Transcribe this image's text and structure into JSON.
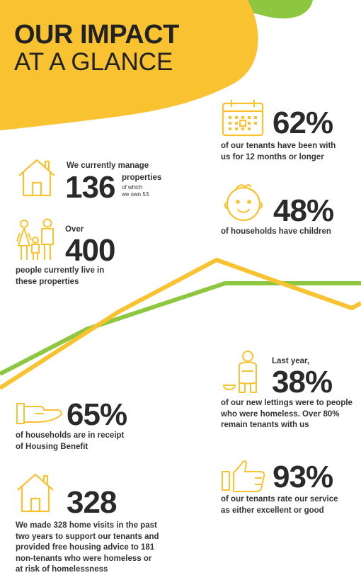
{
  "title": {
    "line1": "OUR IMPACT",
    "line2": "AT A GLANCE"
  },
  "colors": {
    "yellow": "#F9C231",
    "green": "#8DC63F",
    "text": "#2a2a2a"
  },
  "stats": {
    "properties": {
      "intro": "We currently manage",
      "number": "136",
      "unit": "properties",
      "note_line1": "of which",
      "note_line2": "we own 53",
      "icon": "house-icon"
    },
    "tenancy": {
      "number": "62%",
      "line1": "of our tenants have been with",
      "line2": "us for 12 months or longer",
      "icon": "calendar-icon"
    },
    "people": {
      "intro": "Over",
      "number": "400",
      "line1": "people currently live in",
      "line2": "these properties",
      "icon": "family-icon"
    },
    "children": {
      "number": "48%",
      "line1": "of households have children",
      "icon": "baby-face-icon"
    },
    "homeless_lettings": {
      "intro": "Last year,",
      "number": "38%",
      "line1": "of our new lettings were to people",
      "line2": "who were homeless. Over 80%",
      "line3": "remain tenants with us",
      "icon": "person-sitting-icon"
    },
    "housing_benefit": {
      "number": "65%",
      "line1": "of households are in receipt",
      "line2": "of Housing Benefit",
      "icon": "hand-icon"
    },
    "home_visits": {
      "number": "328",
      "line1": "We made 328 home visits in the past",
      "line2": "two years to support our tenants and",
      "line3": "provided free housing advice to 181",
      "line4": "non-tenants who were homeless or",
      "line5": "at risk of homelessness",
      "icon": "house-icon"
    },
    "satisfaction": {
      "number": "93%",
      "line1": "of our tenants rate our service",
      "line2": "as either excellent or good",
      "icon": "thumbs-up-icon"
    }
  }
}
